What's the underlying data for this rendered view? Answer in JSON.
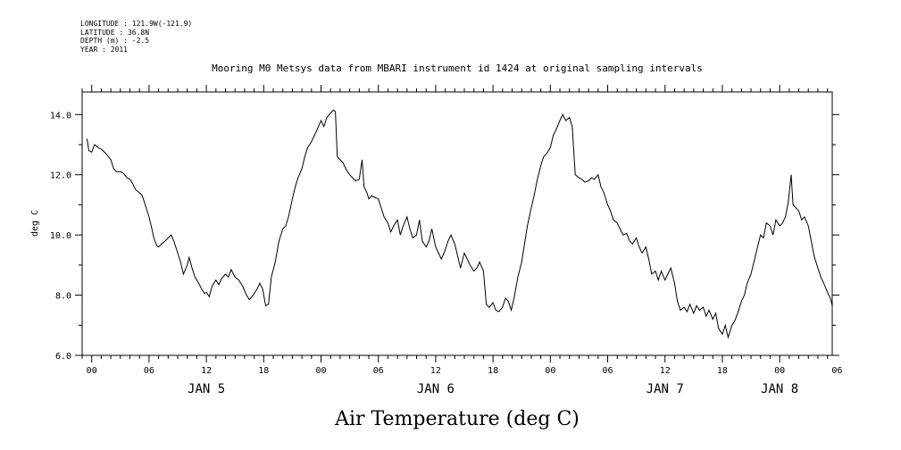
{
  "metadata": {
    "longitude": "LONGITUDE : 121.9W(-121.9)",
    "latitude": "LATITUDE : 36.8N",
    "depth": "DEPTH (m) : -2.5",
    "year": "YEAR : 2011"
  },
  "chart_data": {
    "type": "line",
    "title": "Mooring M0 Metsys data from MBARI instrument id 1424 at original sampling intervals",
    "caption": "Air Temperature (deg C)",
    "xlabel": "",
    "ylabel": "deg C",
    "ylim": [
      6.0,
      14.75
    ],
    "xlim_hours": [
      -1,
      77.5
    ],
    "x_unit": "hours since 2011-01-05 00:00",
    "yticks": [
      "6.0",
      "8.0",
      "10.0",
      "12.0",
      "14.0"
    ],
    "ytick_values": [
      6,
      8,
      10,
      12,
      14
    ],
    "xtick_labels": [
      "00",
      "06",
      "12",
      "18",
      "00",
      "06",
      "12",
      "18",
      "00",
      "06",
      "12",
      "18",
      "00",
      "06"
    ],
    "xtick_hours": [
      0,
      6,
      12,
      18,
      24,
      30,
      36,
      42,
      48,
      54,
      60,
      66,
      72,
      78
    ],
    "day_labels": [
      {
        "label": "JAN  5",
        "hour": 12
      },
      {
        "label": "JAN  6",
        "hour": 36
      },
      {
        "label": "JAN  7",
        "hour": 60
      },
      {
        "label": "JAN  8",
        "hour": 72
      }
    ],
    "grid": false,
    "series": [
      {
        "points": [
          [
            -0.5,
            13.2
          ],
          [
            -0.3,
            12.8
          ],
          [
            0,
            12.75
          ],
          [
            0.3,
            13.0
          ],
          [
            0.7,
            12.9
          ],
          [
            1.0,
            12.85
          ],
          [
            1.5,
            12.7
          ],
          [
            2.0,
            12.5
          ],
          [
            2.3,
            12.2
          ],
          [
            2.6,
            12.1
          ],
          [
            3.0,
            12.1
          ],
          [
            3.3,
            12.05
          ],
          [
            3.7,
            11.9
          ],
          [
            4.0,
            11.85
          ],
          [
            4.3,
            11.7
          ],
          [
            4.6,
            11.5
          ],
          [
            5.0,
            11.4
          ],
          [
            5.3,
            11.3
          ],
          [
            5.6,
            11.0
          ],
          [
            6.0,
            10.6
          ],
          [
            6.3,
            10.2
          ],
          [
            6.5,
            9.9
          ],
          [
            6.8,
            9.65
          ],
          [
            7.0,
            9.6
          ],
          [
            7.3,
            9.7
          ],
          [
            7.7,
            9.8
          ],
          [
            8.0,
            9.9
          ],
          [
            8.3,
            10.0
          ],
          [
            8.6,
            9.8
          ],
          [
            9.0,
            9.4
          ],
          [
            9.3,
            9.1
          ],
          [
            9.6,
            8.7
          ],
          [
            10.0,
            9.0
          ],
          [
            10.2,
            9.25
          ],
          [
            10.5,
            8.9
          ],
          [
            10.8,
            8.6
          ],
          [
            11.2,
            8.4
          ],
          [
            11.5,
            8.2
          ],
          [
            11.8,
            8.05
          ],
          [
            12.0,
            8.1
          ],
          [
            12.3,
            7.95
          ],
          [
            12.6,
            8.3
          ],
          [
            13.0,
            8.5
          ],
          [
            13.3,
            8.35
          ],
          [
            13.6,
            8.55
          ],
          [
            14.0,
            8.7
          ],
          [
            14.3,
            8.6
          ],
          [
            14.6,
            8.85
          ],
          [
            15.0,
            8.6
          ],
          [
            15.4,
            8.5
          ],
          [
            15.8,
            8.3
          ],
          [
            16.2,
            8.0
          ],
          [
            16.5,
            7.85
          ],
          [
            16.9,
            8.0
          ],
          [
            17.3,
            8.2
          ],
          [
            17.6,
            8.4
          ],
          [
            17.9,
            8.2
          ],
          [
            18.2,
            7.65
          ],
          [
            18.5,
            7.7
          ],
          [
            18.8,
            8.6
          ],
          [
            19.2,
            9.1
          ],
          [
            19.6,
            9.8
          ],
          [
            20.0,
            10.2
          ],
          [
            20.3,
            10.3
          ],
          [
            20.6,
            10.6
          ],
          [
            21.0,
            11.2
          ],
          [
            21.3,
            11.6
          ],
          [
            21.6,
            11.9
          ],
          [
            22.0,
            12.2
          ],
          [
            22.3,
            12.6
          ],
          [
            22.6,
            12.9
          ],
          [
            23.0,
            13.1
          ],
          [
            23.3,
            13.3
          ],
          [
            23.6,
            13.5
          ],
          [
            24.0,
            13.8
          ],
          [
            24.3,
            13.6
          ],
          [
            24.6,
            13.9
          ],
          [
            25.0,
            14.05
          ],
          [
            25.3,
            14.15
          ],
          [
            25.5,
            14.1
          ],
          [
            25.7,
            12.6
          ],
          [
            26.0,
            12.5
          ],
          [
            26.3,
            12.4
          ],
          [
            26.6,
            12.2
          ],
          [
            27.0,
            12.0
          ],
          [
            27.3,
            11.9
          ],
          [
            27.6,
            11.8
          ],
          [
            28.0,
            11.85
          ],
          [
            28.3,
            12.5
          ],
          [
            28.5,
            11.6
          ],
          [
            28.8,
            11.4
          ],
          [
            29.0,
            11.2
          ],
          [
            29.3,
            11.3
          ],
          [
            29.6,
            11.25
          ],
          [
            30.0,
            11.2
          ],
          [
            30.3,
            10.9
          ],
          [
            30.6,
            10.6
          ],
          [
            31.0,
            10.4
          ],
          [
            31.3,
            10.1
          ],
          [
            31.6,
            10.3
          ],
          [
            32.0,
            10.5
          ],
          [
            32.3,
            10.0
          ],
          [
            32.6,
            10.3
          ],
          [
            33.0,
            10.6
          ],
          [
            33.3,
            10.2
          ],
          [
            33.6,
            9.9
          ],
          [
            34.0,
            10.0
          ],
          [
            34.3,
            10.5
          ],
          [
            34.6,
            9.8
          ],
          [
            35.0,
            9.6
          ],
          [
            35.3,
            9.8
          ],
          [
            35.6,
            10.2
          ],
          [
            36.0,
            9.6
          ],
          [
            36.3,
            9.4
          ],
          [
            36.6,
            9.2
          ],
          [
            37.0,
            9.5
          ],
          [
            37.3,
            9.8
          ],
          [
            37.6,
            10.0
          ],
          [
            38.0,
            9.7
          ],
          [
            38.3,
            9.3
          ],
          [
            38.6,
            8.9
          ],
          [
            39.0,
            9.4
          ],
          [
            39.3,
            9.2
          ],
          [
            39.6,
            9.0
          ],
          [
            40.0,
            8.8
          ],
          [
            40.3,
            8.9
          ],
          [
            40.6,
            9.1
          ],
          [
            41.0,
            8.8
          ],
          [
            41.3,
            7.7
          ],
          [
            41.6,
            7.6
          ],
          [
            42.0,
            7.75
          ],
          [
            42.3,
            7.5
          ],
          [
            42.6,
            7.45
          ],
          [
            43.0,
            7.6
          ],
          [
            43.3,
            7.9
          ],
          [
            43.6,
            7.8
          ],
          [
            43.9,
            7.5
          ],
          [
            44.2,
            7.9
          ],
          [
            44.6,
            8.6
          ],
          [
            45.0,
            9.1
          ],
          [
            45.3,
            9.7
          ],
          [
            45.6,
            10.3
          ],
          [
            46.0,
            10.9
          ],
          [
            46.3,
            11.3
          ],
          [
            46.6,
            11.8
          ],
          [
            47.0,
            12.3
          ],
          [
            47.3,
            12.6
          ],
          [
            47.6,
            12.7
          ],
          [
            48.0,
            12.9
          ],
          [
            48.3,
            13.3
          ],
          [
            48.6,
            13.5
          ],
          [
            49.0,
            13.8
          ],
          [
            49.3,
            14.0
          ],
          [
            49.6,
            13.8
          ],
          [
            50.0,
            13.9
          ],
          [
            50.3,
            13.6
          ],
          [
            50.6,
            12.0
          ],
          [
            51.0,
            11.9
          ],
          [
            51.3,
            11.85
          ],
          [
            51.6,
            11.75
          ],
          [
            52.0,
            11.8
          ],
          [
            52.3,
            11.9
          ],
          [
            52.6,
            11.85
          ],
          [
            53.0,
            12.0
          ],
          [
            53.3,
            11.6
          ],
          [
            53.6,
            11.4
          ],
          [
            54.0,
            11.0
          ],
          [
            54.3,
            10.8
          ],
          [
            54.6,
            10.5
          ],
          [
            55.0,
            10.4
          ],
          [
            55.3,
            10.2
          ],
          [
            55.6,
            10.0
          ],
          [
            56.0,
            10.05
          ],
          [
            56.3,
            9.8
          ],
          [
            56.6,
            9.7
          ],
          [
            57.0,
            9.9
          ],
          [
            57.3,
            9.6
          ],
          [
            57.6,
            9.4
          ],
          [
            58.0,
            9.6
          ],
          [
            58.3,
            9.2
          ],
          [
            58.6,
            8.7
          ],
          [
            59.0,
            8.8
          ],
          [
            59.3,
            8.5
          ],
          [
            59.6,
            8.8
          ],
          [
            60.0,
            8.5
          ],
          [
            60.3,
            8.7
          ],
          [
            60.6,
            8.9
          ],
          [
            61.0,
            8.4
          ],
          [
            61.3,
            7.8
          ],
          [
            61.6,
            7.5
          ],
          [
            62.0,
            7.6
          ],
          [
            62.3,
            7.45
          ],
          [
            62.6,
            7.7
          ],
          [
            63.0,
            7.4
          ],
          [
            63.3,
            7.65
          ],
          [
            63.6,
            7.5
          ],
          [
            64.0,
            7.6
          ],
          [
            64.3,
            7.3
          ],
          [
            64.6,
            7.5
          ],
          [
            65.0,
            7.2
          ],
          [
            65.3,
            7.4
          ],
          [
            65.6,
            6.9
          ],
          [
            66.0,
            6.7
          ],
          [
            66.3,
            7.0
          ],
          [
            66.6,
            6.6
          ],
          [
            67.0,
            7.0
          ],
          [
            67.3,
            7.15
          ],
          [
            67.6,
            7.4
          ],
          [
            68.0,
            7.8
          ],
          [
            68.3,
            8.0
          ],
          [
            68.6,
            8.4
          ],
          [
            69.0,
            8.7
          ],
          [
            69.3,
            9.1
          ],
          [
            69.6,
            9.5
          ],
          [
            70.0,
            10.0
          ],
          [
            70.3,
            9.9
          ],
          [
            70.6,
            10.4
          ],
          [
            71.0,
            10.3
          ],
          [
            71.3,
            10.0
          ],
          [
            71.6,
            10.5
          ],
          [
            72.0,
            10.3
          ],
          [
            72.3,
            10.4
          ],
          [
            72.6,
            10.6
          ],
          [
            72.9,
            11.1
          ],
          [
            73.2,
            12.0
          ],
          [
            73.4,
            11.0
          ],
          [
            73.7,
            10.9
          ],
          [
            74.0,
            10.8
          ],
          [
            74.3,
            10.5
          ],
          [
            74.6,
            10.6
          ],
          [
            75.0,
            10.3
          ],
          [
            75.3,
            9.8
          ],
          [
            75.6,
            9.3
          ],
          [
            76.0,
            8.9
          ],
          [
            76.3,
            8.6
          ],
          [
            76.6,
            8.4
          ],
          [
            77.0,
            8.1
          ],
          [
            77.3,
            7.9
          ],
          [
            77.5,
            7.65
          ]
        ]
      }
    ]
  }
}
